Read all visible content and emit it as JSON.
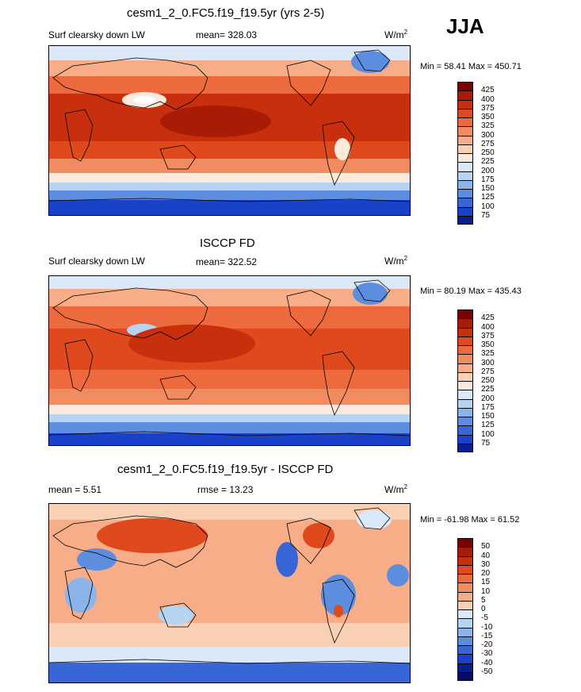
{
  "season": "JJA",
  "panels": [
    {
      "title": "cesm1_2_0.FC5.f19_f19.5yr (yrs 2-5)",
      "left_label": "Surf clearsky down LW",
      "center_label": "mean= 328.03",
      "units": "W/m",
      "units_sup": "2",
      "minmax": "Min =  58.41 Max = 450.71",
      "colorbar": {
        "labels": [
          "425",
          "400",
          "375",
          "350",
          "325",
          "300",
          "275",
          "250",
          "225",
          "200",
          "175",
          "150",
          "125",
          "100",
          "75"
        ],
        "colors": [
          "#7a0000",
          "#a81b04",
          "#c8300d",
          "#de4a1e",
          "#ec6a3e",
          "#f38b61",
          "#f7ad88",
          "#fad0b5",
          "#fbe9dc",
          "#dbe8f7",
          "#b7d3f2",
          "#8bb4ea",
          "#5d8ddf",
          "#3866d6",
          "#1942c9",
          "#0b1e8c"
        ]
      }
    },
    {
      "title": "ISCCP FD",
      "left_label": "Surf clearsky down LW",
      "center_label": "mean= 322.52",
      "units": "W/m",
      "units_sup": "2",
      "minmax": "Min =  80.19 Max = 435.43",
      "colorbar": {
        "labels": [
          "425",
          "400",
          "375",
          "350",
          "325",
          "300",
          "275",
          "250",
          "225",
          "200",
          "175",
          "150",
          "125",
          "100",
          "75"
        ],
        "colors": [
          "#7a0000",
          "#a81b04",
          "#c8300d",
          "#de4a1e",
          "#ec6a3e",
          "#f38b61",
          "#f7ad88",
          "#fad0b5",
          "#fbe9dc",
          "#dbe8f7",
          "#b7d3f2",
          "#8bb4ea",
          "#5d8ddf",
          "#3866d6",
          "#1942c9",
          "#0b1e8c"
        ]
      }
    },
    {
      "title": "cesm1_2_0.FC5.f19_f19.5yr - ISCCP FD",
      "left_label": "mean =   5.51",
      "center_label": "rmse =  13.23",
      "units": "W/m",
      "units_sup": "2",
      "minmax": "Min = -61.98 Max =  61.52",
      "colorbar": {
        "labels": [
          "50",
          "40",
          "30",
          "20",
          "15",
          "10",
          "5",
          "0",
          "-5",
          "-10",
          "-15",
          "-20",
          "-30",
          "-40",
          "-50"
        ],
        "colors": [
          "#7a0000",
          "#a81b04",
          "#c8300d",
          "#de4a1e",
          "#ec6a3e",
          "#f38b61",
          "#f7ad88",
          "#fad0b5",
          "#dbe8f7",
          "#b7d3f2",
          "#8bb4ea",
          "#5d8ddf",
          "#3866d6",
          "#1942c9",
          "#0b1e8c",
          "#050a6b"
        ]
      }
    }
  ]
}
